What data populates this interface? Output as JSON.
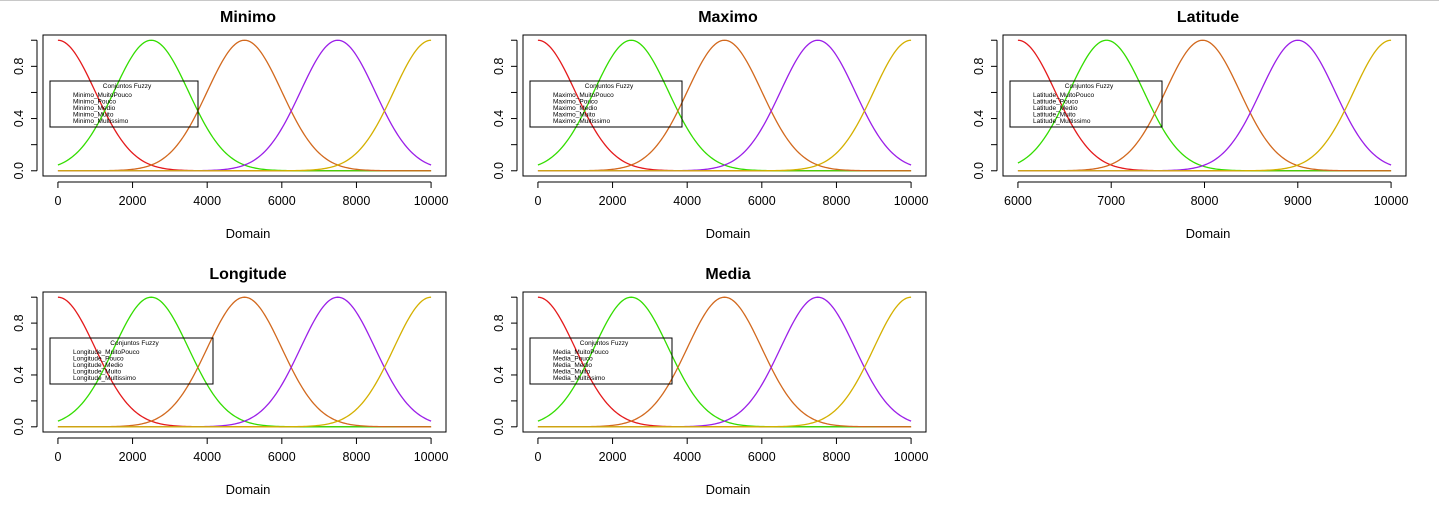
{
  "colors": {
    "MuitoPouco": "#e41a1c",
    "Pouco": "#33dd00",
    "Medio": "#d2691e",
    "Muito": "#9b1fe8",
    "Muitissimo": "#d4b000",
    "axis": "#000000"
  },
  "chart_data": [
    {
      "type": "line",
      "title": "Minimo",
      "xlabel": "Domain",
      "ylabel": "",
      "xlim": [
        0,
        10000
      ],
      "ylim": [
        0,
        1
      ],
      "xticks": [
        "0",
        "2000",
        "4000",
        "6000",
        "8000",
        "10000"
      ],
      "yticks": [
        "0.0",
        "0.4",
        "0.8"
      ],
      "legend": {
        "title": "Conjuntos Fuzzy",
        "entries": [
          "Minimo_MuitoPouco",
          "Minimo_Pouco",
          "Minimo_Medio",
          "Minimo_Muito",
          "Minimo_Multissimo"
        ],
        "placement": "left"
      },
      "series": [
        {
          "name": "Minimo_MuitoPouco",
          "type": "gaussian",
          "center": 0,
          "sigma": 1000
        },
        {
          "name": "Minimo_Pouco",
          "type": "gaussian",
          "center": 2500,
          "sigma": 1000
        },
        {
          "name": "Minimo_Medio",
          "type": "gaussian",
          "center": 5000,
          "sigma": 1000
        },
        {
          "name": "Minimo_Muito",
          "type": "gaussian",
          "center": 7500,
          "sigma": 1000
        },
        {
          "name": "Minimo_Multissimo",
          "type": "gaussian",
          "center": 10000,
          "sigma": 1000
        }
      ]
    },
    {
      "type": "line",
      "title": "Maximo",
      "xlabel": "Domain",
      "ylabel": "",
      "xlim": [
        0,
        10000
      ],
      "ylim": [
        0,
        1
      ],
      "xticks": [
        "0",
        "2000",
        "4000",
        "6000",
        "8000",
        "10000"
      ],
      "yticks": [
        "0.0",
        "0.4",
        "0.8"
      ],
      "legend": {
        "title": "Conjuntos Fuzzy",
        "entries": [
          "Maximo_MuitoPouco",
          "Maximo_Pouco",
          "Maximo_Medio",
          "Maximo_Muito",
          "Maximo_Multissimo"
        ],
        "placement": "left"
      },
      "series": [
        {
          "name": "Maximo_MuitoPouco",
          "type": "gaussian",
          "center": 0,
          "sigma": 1000
        },
        {
          "name": "Maximo_Pouco",
          "type": "gaussian",
          "center": 2500,
          "sigma": 1000
        },
        {
          "name": "Maximo_Medio",
          "type": "gaussian",
          "center": 5000,
          "sigma": 1000
        },
        {
          "name": "Maximo_Muito",
          "type": "gaussian",
          "center": 7500,
          "sigma": 1000
        },
        {
          "name": "Maximo_Multissimo",
          "type": "gaussian",
          "center": 10000,
          "sigma": 1000
        }
      ]
    },
    {
      "type": "line",
      "title": "Latitude",
      "xlabel": "Domain",
      "ylabel": "",
      "xlim": [
        6000,
        10000
      ],
      "ylim": [
        0,
        1
      ],
      "xticks": [
        "6000",
        "7000",
        "8000",
        "9000",
        "10000"
      ],
      "yticks": [
        "0.0",
        "0.4",
        "0.8"
      ],
      "legend": {
        "title": "Conjuntos Fuzzy",
        "entries": [
          "Latitude_MuitoPouco",
          "Latitude_Pouco",
          "Latitude_Medio",
          "Latitude_Muito",
          "Latitude_Multissimo"
        ],
        "placement": "left"
      },
      "series": [
        {
          "name": "Latitude_MuitoPouco",
          "type": "gaussian",
          "center": 6000,
          "sigma": 400
        },
        {
          "name": "Latitude_Pouco",
          "type": "gaussian",
          "center": 6950,
          "sigma": 400
        },
        {
          "name": "Latitude_Medio",
          "type": "gaussian",
          "center": 7980,
          "sigma": 400
        },
        {
          "name": "Latitude_Muito",
          "type": "gaussian",
          "center": 9000,
          "sigma": 400
        },
        {
          "name": "Latitude_Multissimo",
          "type": "gaussian",
          "center": 10000,
          "sigma": 400
        }
      ]
    },
    {
      "type": "line",
      "title": "Longitude",
      "xlabel": "Domain",
      "ylabel": "",
      "xlim": [
        0,
        10000
      ],
      "ylim": [
        0,
        1
      ],
      "xticks": [
        "0",
        "2000",
        "4000",
        "6000",
        "8000",
        "10000"
      ],
      "yticks": [
        "0.0",
        "0.4",
        "0.8"
      ],
      "legend": {
        "title": "Conjuntos Fuzzy",
        "entries": [
          "Longitude_MuitoPouco",
          "Longitude_Pouco",
          "Longitude_Medio",
          "Longitude_Muito",
          "Longitude_Multissimo"
        ],
        "placement": "left"
      },
      "series": [
        {
          "name": "Longitude_MuitoPouco",
          "type": "gaussian",
          "center": 0,
          "sigma": 1000
        },
        {
          "name": "Longitude_Pouco",
          "type": "gaussian",
          "center": 2500,
          "sigma": 1000
        },
        {
          "name": "Longitude_Medio",
          "type": "gaussian",
          "center": 5000,
          "sigma": 1000
        },
        {
          "name": "Longitude_Muito",
          "type": "gaussian",
          "center": 7500,
          "sigma": 1000
        },
        {
          "name": "Longitude_Multissimo",
          "type": "gaussian",
          "center": 10000,
          "sigma": 1000
        }
      ]
    },
    {
      "type": "line",
      "title": "Media",
      "xlabel": "Domain",
      "ylabel": "",
      "xlim": [
        0,
        10000
      ],
      "ylim": [
        0,
        1
      ],
      "xticks": [
        "0",
        "2000",
        "4000",
        "6000",
        "8000",
        "10000"
      ],
      "yticks": [
        "0.0",
        "0.4",
        "0.8"
      ],
      "legend": {
        "title": "Conjuntos Fuzzy",
        "entries": [
          "Media_MuitoPouco",
          "Media_Pouco",
          "Media_Medio",
          "Media_Muito",
          "Media_Multissimo"
        ],
        "placement": "left"
      },
      "series": [
        {
          "name": "Media_MuitoPouco",
          "type": "gaussian",
          "center": 0,
          "sigma": 1000
        },
        {
          "name": "Media_Pouco",
          "type": "gaussian",
          "center": 2500,
          "sigma": 1000
        },
        {
          "name": "Media_Medio",
          "type": "gaussian",
          "center": 5000,
          "sigma": 1000
        },
        {
          "name": "Media_Muito",
          "type": "gaussian",
          "center": 7500,
          "sigma": 1000
        },
        {
          "name": "Media_Multissimo",
          "type": "gaussian",
          "center": 10000,
          "sigma": 1000
        }
      ]
    }
  ]
}
